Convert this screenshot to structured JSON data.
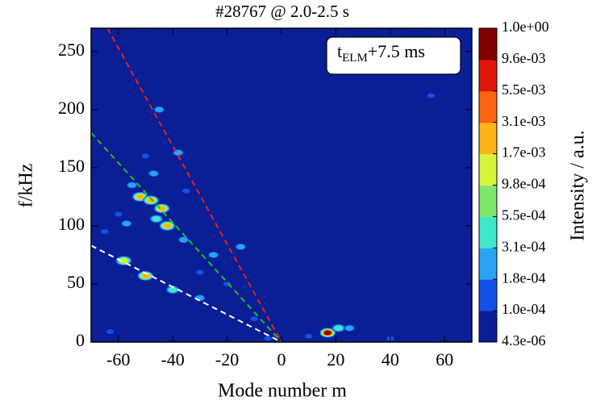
{
  "chart_data": {
    "type": "contour",
    "title": "#28767 @ 2.0-2.5 s",
    "x_label": "Mode number m",
    "y_label": "f/kHz",
    "xlim": [
      -70,
      70
    ],
    "ylim": [
      0,
      270
    ],
    "xticks": [
      -60,
      -40,
      -20,
      0,
      20,
      40,
      60
    ],
    "yticks": [
      0,
      50,
      100,
      150,
      200,
      250
    ],
    "annotation": {
      "t": "t",
      "sub": "ELM",
      "rest": "+7.5 ms"
    },
    "colorbar": {
      "label": "Intensity / a.u.",
      "ticks": [
        {
          "value": 4.3e-06,
          "label": "4.3e-06"
        },
        {
          "value": 0.0001,
          "label": "1.0e-04"
        },
        {
          "value": 0.00018,
          "label": "1.8e-04"
        },
        {
          "value": 0.00031,
          "label": "3.1e-04"
        },
        {
          "value": 0.00055,
          "label": "5.5e-04"
        },
        {
          "value": 0.00098,
          "label": "9.8e-04"
        },
        {
          "value": 0.0017,
          "label": "1.7e-03"
        },
        {
          "value": 0.0031,
          "label": "3.1e-03"
        },
        {
          "value": 0.0055,
          "label": "5.5e-03"
        },
        {
          "value": 0.0096,
          "label": "9.6e-03"
        },
        {
          "value": 1.0,
          "label": "1.0e+00"
        }
      ],
      "colors": [
        "#0a1e96",
        "#1450e6",
        "#2aa4f2",
        "#3ee8c8",
        "#7ee86a",
        "#d8f43a",
        "#ffb21a",
        "#ff6410",
        "#e0160a",
        "#800000"
      ]
    },
    "series": [
      {
        "x": [
          -55,
          -52,
          -48,
          -44,
          -42,
          -46,
          -58,
          -50,
          -40,
          -30,
          -50,
          -45,
          -38,
          -60,
          -25,
          -15,
          17,
          21,
          25,
          -30,
          -20,
          -65,
          -35,
          -10,
          10,
          40,
          55,
          -5,
          -63,
          -36,
          -57,
          -47
        ],
        "y": [
          135,
          125,
          122,
          115,
          100,
          106,
          70,
          57,
          45,
          38,
          160,
          200,
          163,
          110,
          75,
          82,
          8,
          12,
          12,
          60,
          50,
          95,
          130,
          20,
          5,
          3,
          212,
          3,
          9,
          88,
          102,
          145
        ],
        "values": [
          0.0003,
          0.003,
          0.0017,
          0.003,
          0.003,
          0.0005,
          0.001,
          0.0017,
          0.0005,
          0.0002,
          0.0001,
          0.0002,
          0.0002,
          0.0001,
          0.0002,
          0.0002,
          0.0096,
          0.0005,
          0.0003,
          0.0001,
          0.0001,
          0.0001,
          0.0001,
          0.0001,
          0.0001,
          0.0001,
          0.0001,
          0.0001,
          0.0001,
          0.0002,
          0.0002,
          0.0002
        ]
      }
    ],
    "lines": [
      {
        "color": "#e8241c",
        "x": [
          -64,
          0
        ],
        "y": [
          270,
          0
        ]
      },
      {
        "color": "#22c01c",
        "x": [
          -70,
          0
        ],
        "y": [
          180,
          0
        ]
      },
      {
        "color": "#ffffff",
        "x": [
          -70,
          0
        ],
        "y": [
          83,
          0
        ]
      }
    ]
  }
}
